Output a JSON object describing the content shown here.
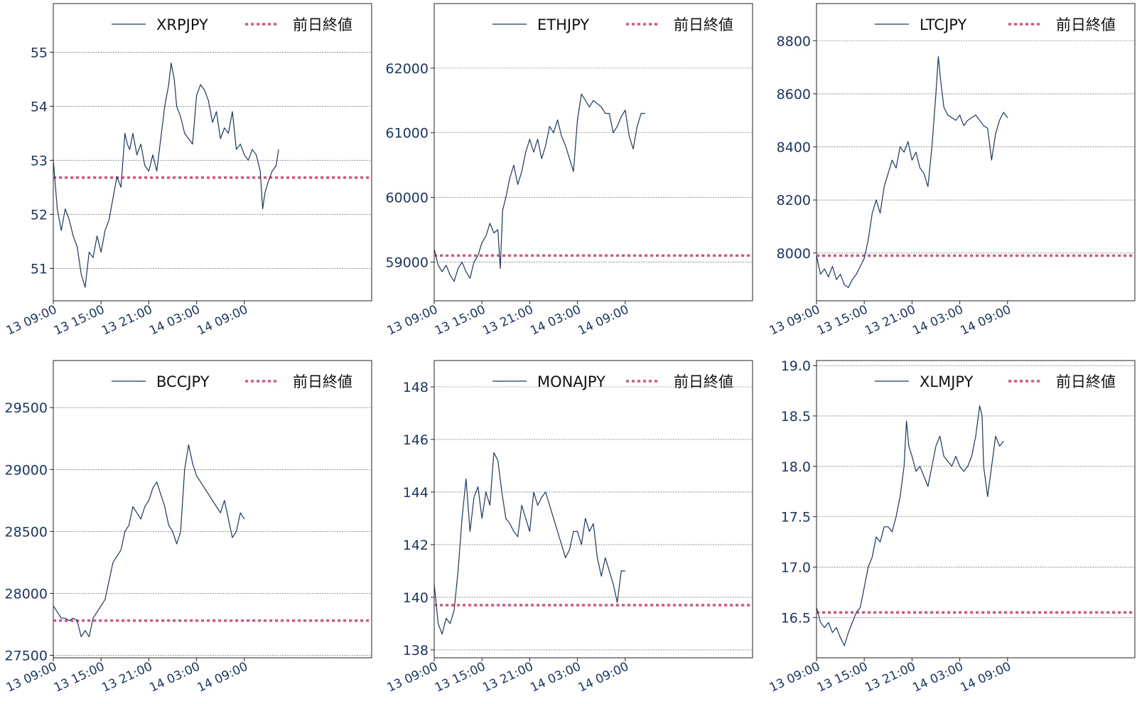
{
  "colors": {
    "line": "#1b3766",
    "reference": "#e0507a",
    "axis": "#1b3766",
    "grid": "#555555",
    "frame": "#222222"
  },
  "legend_reference_label": "前日終値",
  "x_tick_labels": [
    "13 09:00",
    "13 15:00",
    "13 21:00",
    "14 03:00",
    "14 09:00"
  ],
  "chart_data": [
    {
      "type": "line",
      "series_name": "XRPJPY",
      "reference_value": 52.68,
      "ylim": [
        50.4,
        55.9
      ],
      "y_ticks": [
        51,
        52,
        53,
        54,
        55
      ],
      "y_tick_labels": [
        "51",
        "52",
        "53",
        "54",
        "55"
      ],
      "grid": true,
      "legend": "top-right",
      "points": [
        [
          0,
          53.0
        ],
        [
          0.5,
          52.1
        ],
        [
          1,
          51.7
        ],
        [
          1.5,
          52.1
        ],
        [
          2,
          51.9
        ],
        [
          2.5,
          51.6
        ],
        [
          3,
          51.4
        ],
        [
          3.5,
          50.9
        ],
        [
          4,
          50.65
        ],
        [
          4.5,
          51.3
        ],
        [
          5,
          51.2
        ],
        [
          5.5,
          51.6
        ],
        [
          6,
          51.3
        ],
        [
          6.5,
          51.7
        ],
        [
          7,
          51.9
        ],
        [
          7.5,
          52.3
        ],
        [
          8,
          52.7
        ],
        [
          8.5,
          52.5
        ],
        [
          9,
          53.5
        ],
        [
          9.3,
          53.3
        ],
        [
          9.6,
          53.2
        ],
        [
          10,
          53.5
        ],
        [
          10.5,
          53.1
        ],
        [
          11,
          53.3
        ],
        [
          11.5,
          52.9
        ],
        [
          12,
          52.8
        ],
        [
          12.5,
          53.1
        ],
        [
          13,
          52.8
        ],
        [
          13.5,
          53.4
        ],
        [
          14,
          54.0
        ],
        [
          14.5,
          54.4
        ],
        [
          14.8,
          54.8
        ],
        [
          15.2,
          54.5
        ],
        [
          15.5,
          54.0
        ],
        [
          16,
          53.8
        ],
        [
          16.5,
          53.5
        ],
        [
          17,
          53.4
        ],
        [
          17.5,
          53.3
        ],
        [
          18,
          54.2
        ],
        [
          18.5,
          54.4
        ],
        [
          19,
          54.3
        ],
        [
          19.5,
          54.1
        ],
        [
          20,
          53.7
        ],
        [
          20.5,
          53.9
        ],
        [
          21,
          53.4
        ],
        [
          21.5,
          53.6
        ],
        [
          22,
          53.5
        ],
        [
          22.5,
          53.9
        ],
        [
          23,
          53.2
        ],
        [
          23.5,
          53.3
        ],
        [
          24,
          53.1
        ],
        [
          24.5,
          53.0
        ],
        [
          25,
          53.2
        ],
        [
          25.5,
          53.1
        ],
        [
          26,
          52.8
        ],
        [
          26.3,
          52.1
        ],
        [
          26.6,
          52.4
        ],
        [
          27,
          52.6
        ],
        [
          27.5,
          52.8
        ],
        [
          28,
          52.9
        ],
        [
          28.3,
          53.2
        ]
      ]
    },
    {
      "type": "line",
      "series_name": "ETHJPY",
      "reference_value": 59100,
      "ylim": [
        58400,
        63000
      ],
      "y_ticks": [
        59000,
        60000,
        61000,
        62000
      ],
      "y_tick_labels": [
        "59000",
        "60000",
        "61000",
        "62000"
      ],
      "grid": true,
      "legend": "top-right",
      "points": [
        [
          0,
          59200
        ],
        [
          0.5,
          58950
        ],
        [
          1,
          58850
        ],
        [
          1.5,
          58950
        ],
        [
          2,
          58800
        ],
        [
          2.5,
          58700
        ],
        [
          3,
          58900
        ],
        [
          3.5,
          59000
        ],
        [
          4,
          58850
        ],
        [
          4.5,
          58750
        ],
        [
          5,
          59000
        ],
        [
          5.5,
          59100
        ],
        [
          6,
          59300
        ],
        [
          6.5,
          59400
        ],
        [
          7,
          59600
        ],
        [
          7.5,
          59450
        ],
        [
          8,
          59500
        ],
        [
          8.3,
          58900
        ],
        [
          8.6,
          59800
        ],
        [
          9,
          60000
        ],
        [
          9.5,
          60300
        ],
        [
          10,
          60500
        ],
        [
          10.5,
          60200
        ],
        [
          11,
          60400
        ],
        [
          11.5,
          60700
        ],
        [
          12,
          60900
        ],
        [
          12.5,
          60700
        ],
        [
          13,
          60900
        ],
        [
          13.5,
          60600
        ],
        [
          14,
          60800
        ],
        [
          14.5,
          61100
        ],
        [
          15,
          61000
        ],
        [
          15.5,
          61200
        ],
        [
          16,
          60950
        ],
        [
          16.5,
          60800
        ],
        [
          17,
          60600
        ],
        [
          17.5,
          60400
        ],
        [
          18,
          61200
        ],
        [
          18.5,
          61600
        ],
        [
          19,
          61500
        ],
        [
          19.5,
          61400
        ],
        [
          20,
          61500
        ],
        [
          20.5,
          61450
        ],
        [
          21,
          61400
        ],
        [
          21.5,
          61300
        ],
        [
          22,
          61300
        ],
        [
          22.5,
          61000
        ],
        [
          23,
          61100
        ],
        [
          23.5,
          61250
        ],
        [
          24,
          61350
        ],
        [
          24.5,
          60950
        ],
        [
          25,
          60750
        ],
        [
          25.5,
          61100
        ],
        [
          26,
          61300
        ],
        [
          26.5,
          61300
        ]
      ]
    },
    {
      "type": "line",
      "series_name": "LTCJPY",
      "reference_value": 7990,
      "ylim": [
        7820,
        8940
      ],
      "y_ticks": [
        8000,
        8200,
        8400,
        8600,
        8800
      ],
      "y_tick_labels": [
        "8000",
        "8200",
        "8400",
        "8600",
        "8800"
      ],
      "grid": true,
      "legend": "top-right",
      "points": [
        [
          0,
          7990
        ],
        [
          0.5,
          7920
        ],
        [
          1,
          7940
        ],
        [
          1.5,
          7910
        ],
        [
          2,
          7950
        ],
        [
          2.5,
          7900
        ],
        [
          3,
          7920
        ],
        [
          3.5,
          7880
        ],
        [
          4,
          7870
        ],
        [
          4.5,
          7900
        ],
        [
          5,
          7920
        ],
        [
          5.5,
          7950
        ],
        [
          6,
          7980
        ],
        [
          6.5,
          8050
        ],
        [
          7,
          8150
        ],
        [
          7.5,
          8200
        ],
        [
          8,
          8150
        ],
        [
          8.5,
          8250
        ],
        [
          9,
          8300
        ],
        [
          9.5,
          8350
        ],
        [
          10,
          8320
        ],
        [
          10.5,
          8400
        ],
        [
          11,
          8380
        ],
        [
          11.5,
          8420
        ],
        [
          12,
          8350
        ],
        [
          12.5,
          8380
        ],
        [
          13,
          8320
        ],
        [
          13.5,
          8300
        ],
        [
          14,
          8250
        ],
        [
          14.5,
          8400
        ],
        [
          15,
          8600
        ],
        [
          15.3,
          8740
        ],
        [
          15.6,
          8650
        ],
        [
          16,
          8550
        ],
        [
          16.5,
          8520
        ],
        [
          17,
          8510
        ],
        [
          17.5,
          8500
        ],
        [
          18,
          8520
        ],
        [
          18.5,
          8480
        ],
        [
          19,
          8500
        ],
        [
          19.5,
          8510
        ],
        [
          20,
          8520
        ],
        [
          20.5,
          8500
        ],
        [
          21,
          8480
        ],
        [
          21.5,
          8470
        ],
        [
          22,
          8350
        ],
        [
          22.5,
          8450
        ],
        [
          23,
          8500
        ],
        [
          23.5,
          8530
        ],
        [
          24,
          8510
        ]
      ]
    },
    {
      "type": "line",
      "series_name": "BCCJPY",
      "reference_value": 27780,
      "ylim": [
        27480,
        29880
      ],
      "y_ticks": [
        27500,
        28000,
        28500,
        29000,
        29500
      ],
      "y_tick_labels": [
        "27500",
        "28000",
        "28500",
        "29000",
        "29500"
      ],
      "grid": true,
      "legend": "top-right",
      "points": [
        [
          0,
          27900
        ],
        [
          0.5,
          27850
        ],
        [
          1,
          27800
        ],
        [
          1.5,
          27800
        ],
        [
          2,
          27780
        ],
        [
          2.5,
          27800
        ],
        [
          3,
          27780
        ],
        [
          3.5,
          27650
        ],
        [
          4,
          27700
        ],
        [
          4.5,
          27650
        ],
        [
          5,
          27800
        ],
        [
          5.5,
          27850
        ],
        [
          6,
          27900
        ],
        [
          6.5,
          27950
        ],
        [
          7,
          28100
        ],
        [
          7.5,
          28250
        ],
        [
          8,
          28300
        ],
        [
          8.5,
          28350
        ],
        [
          9,
          28500
        ],
        [
          9.5,
          28550
        ],
        [
          10,
          28700
        ],
        [
          10.5,
          28650
        ],
        [
          11,
          28600
        ],
        [
          11.5,
          28700
        ],
        [
          12,
          28750
        ],
        [
          12.5,
          28850
        ],
        [
          13,
          28900
        ],
        [
          13.5,
          28800
        ],
        [
          14,
          28700
        ],
        [
          14.5,
          28550
        ],
        [
          15,
          28500
        ],
        [
          15.5,
          28400
        ],
        [
          16,
          28500
        ],
        [
          16.5,
          29000
        ],
        [
          17,
          29200
        ],
        [
          17.5,
          29050
        ],
        [
          18,
          28950
        ],
        [
          18.5,
          28900
        ],
        [
          19,
          28850
        ],
        [
          19.5,
          28800
        ],
        [
          20,
          28750
        ],
        [
          20.5,
          28700
        ],
        [
          21,
          28650
        ],
        [
          21.5,
          28750
        ],
        [
          22,
          28600
        ],
        [
          22.5,
          28450
        ],
        [
          23,
          28500
        ],
        [
          23.5,
          28650
        ],
        [
          24,
          28600
        ]
      ]
    },
    {
      "type": "line",
      "series_name": "MONAJPY",
      "reference_value": 139.7,
      "ylim": [
        137.7,
        149.0
      ],
      "y_ticks": [
        138,
        140,
        142,
        144,
        146,
        148
      ],
      "y_tick_labels": [
        "138",
        "140",
        "142",
        "144",
        "146",
        "148"
      ],
      "grid": true,
      "legend": "top-right",
      "points": [
        [
          0,
          140.5
        ],
        [
          0.5,
          139.0
        ],
        [
          1,
          138.6
        ],
        [
          1.5,
          139.2
        ],
        [
          2,
          139.0
        ],
        [
          2.5,
          139.5
        ],
        [
          3,
          141.0
        ],
        [
          3.5,
          143.0
        ],
        [
          4,
          144.5
        ],
        [
          4.5,
          142.5
        ],
        [
          5,
          143.8
        ],
        [
          5.5,
          144.2
        ],
        [
          6,
          143.0
        ],
        [
          6.5,
          144.0
        ],
        [
          7,
          143.5
        ],
        [
          7.5,
          145.5
        ],
        [
          8,
          145.2
        ],
        [
          8.5,
          144.0
        ],
        [
          9,
          143.0
        ],
        [
          9.5,
          142.8
        ],
        [
          10,
          142.5
        ],
        [
          10.5,
          142.3
        ],
        [
          11,
          143.5
        ],
        [
          11.5,
          143.0
        ],
        [
          12,
          142.5
        ],
        [
          12.5,
          144.0
        ],
        [
          13,
          143.5
        ],
        [
          13.5,
          143.8
        ],
        [
          14,
          144.0
        ],
        [
          14.5,
          143.5
        ],
        [
          15,
          143.0
        ],
        [
          15.5,
          142.5
        ],
        [
          16,
          142.0
        ],
        [
          16.5,
          141.5
        ],
        [
          17,
          141.8
        ],
        [
          17.5,
          142.5
        ],
        [
          18,
          142.5
        ],
        [
          18.5,
          142.0
        ],
        [
          19,
          143.0
        ],
        [
          19.5,
          142.5
        ],
        [
          20,
          142.8
        ],
        [
          20.5,
          141.5
        ],
        [
          21,
          140.8
        ],
        [
          21.5,
          141.5
        ],
        [
          22,
          141.0
        ],
        [
          22.5,
          140.5
        ],
        [
          23,
          139.8
        ],
        [
          23.5,
          141.0
        ],
        [
          24,
          141.0
        ]
      ]
    },
    {
      "type": "line",
      "series_name": "XLMJPY",
      "reference_value": 16.55,
      "ylim": [
        16.1,
        19.05
      ],
      "y_ticks": [
        16.5,
        17.0,
        17.5,
        18.0,
        18.5,
        19.0
      ],
      "y_tick_labels": [
        "16.5",
        "17.0",
        "17.5",
        "18.0",
        "18.5",
        "19.0"
      ],
      "grid": true,
      "legend": "top-right",
      "points": [
        [
          0,
          16.6
        ],
        [
          0.5,
          16.45
        ],
        [
          1,
          16.4
        ],
        [
          1.5,
          16.45
        ],
        [
          2,
          16.35
        ],
        [
          2.5,
          16.4
        ],
        [
          3,
          16.3
        ],
        [
          3.5,
          16.22
        ],
        [
          4,
          16.35
        ],
        [
          4.5,
          16.45
        ],
        [
          5,
          16.55
        ],
        [
          5.5,
          16.6
        ],
        [
          6,
          16.8
        ],
        [
          6.5,
          17.0
        ],
        [
          7,
          17.1
        ],
        [
          7.5,
          17.3
        ],
        [
          8,
          17.25
        ],
        [
          8.5,
          17.4
        ],
        [
          9,
          17.4
        ],
        [
          9.5,
          17.35
        ],
        [
          10,
          17.5
        ],
        [
          10.5,
          17.7
        ],
        [
          11,
          18.0
        ],
        [
          11.3,
          18.45
        ],
        [
          11.6,
          18.2
        ],
        [
          12,
          18.1
        ],
        [
          12.5,
          17.95
        ],
        [
          13,
          18.0
        ],
        [
          13.5,
          17.9
        ],
        [
          14,
          17.8
        ],
        [
          14.5,
          18.0
        ],
        [
          15,
          18.2
        ],
        [
          15.5,
          18.3
        ],
        [
          16,
          18.1
        ],
        [
          16.5,
          18.05
        ],
        [
          17,
          18.0
        ],
        [
          17.5,
          18.1
        ],
        [
          18,
          18.0
        ],
        [
          18.5,
          17.95
        ],
        [
          19,
          18.0
        ],
        [
          19.5,
          18.1
        ],
        [
          20,
          18.3
        ],
        [
          20.5,
          18.6
        ],
        [
          20.8,
          18.5
        ],
        [
          21,
          18.0
        ],
        [
          21.5,
          17.7
        ],
        [
          22,
          18.0
        ],
        [
          22.5,
          18.3
        ],
        [
          23,
          18.2
        ],
        [
          23.5,
          18.25
        ]
      ]
    }
  ]
}
